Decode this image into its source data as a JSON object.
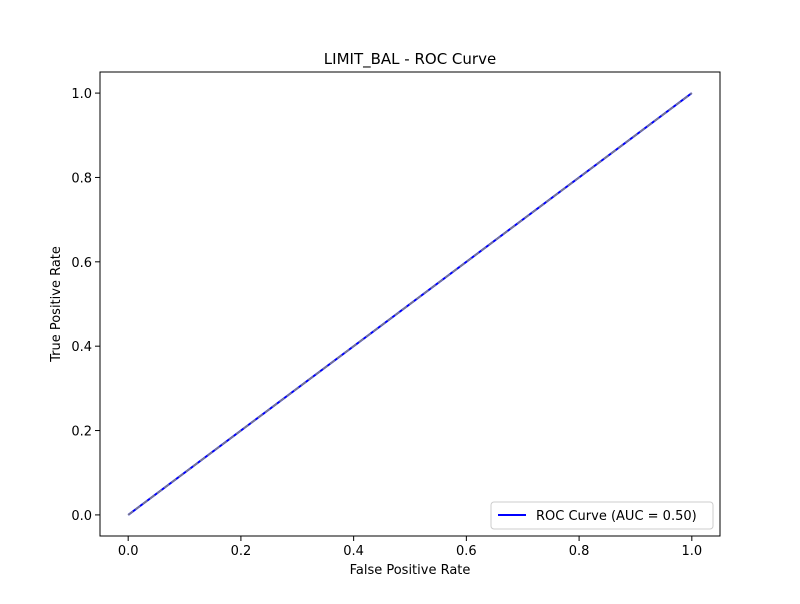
{
  "chart_data": {
    "type": "line",
    "title": "LIMIT_BAL - ROC Curve",
    "xlabel": "False Positive Rate",
    "ylabel": "True Positive Rate",
    "xlim": [
      -0.05,
      1.05
    ],
    "ylim": [
      -0.05,
      1.05
    ],
    "x_ticks": [
      0.0,
      0.2,
      0.4,
      0.6,
      0.8,
      1.0
    ],
    "y_ticks": [
      0.0,
      0.2,
      0.4,
      0.6,
      0.8,
      1.0
    ],
    "x_tick_labels": [
      "0.0",
      "0.2",
      "0.4",
      "0.6",
      "0.8",
      "1.0"
    ],
    "y_tick_labels": [
      "0.0",
      "0.2",
      "0.4",
      "0.6",
      "0.8",
      "1.0"
    ],
    "grid": false,
    "legend_position": "lower-right",
    "series": [
      {
        "name": "ROC Curve (AUC = 0.50)",
        "x": [
          0.0,
          1.0
        ],
        "y": [
          0.0,
          1.0
        ],
        "color": "#0000ff",
        "style": "solid"
      },
      {
        "x": [
          0.0,
          1.0
        ],
        "y": [
          0.0,
          1.0
        ],
        "color": "#808080",
        "style": "dashed"
      }
    ]
  }
}
